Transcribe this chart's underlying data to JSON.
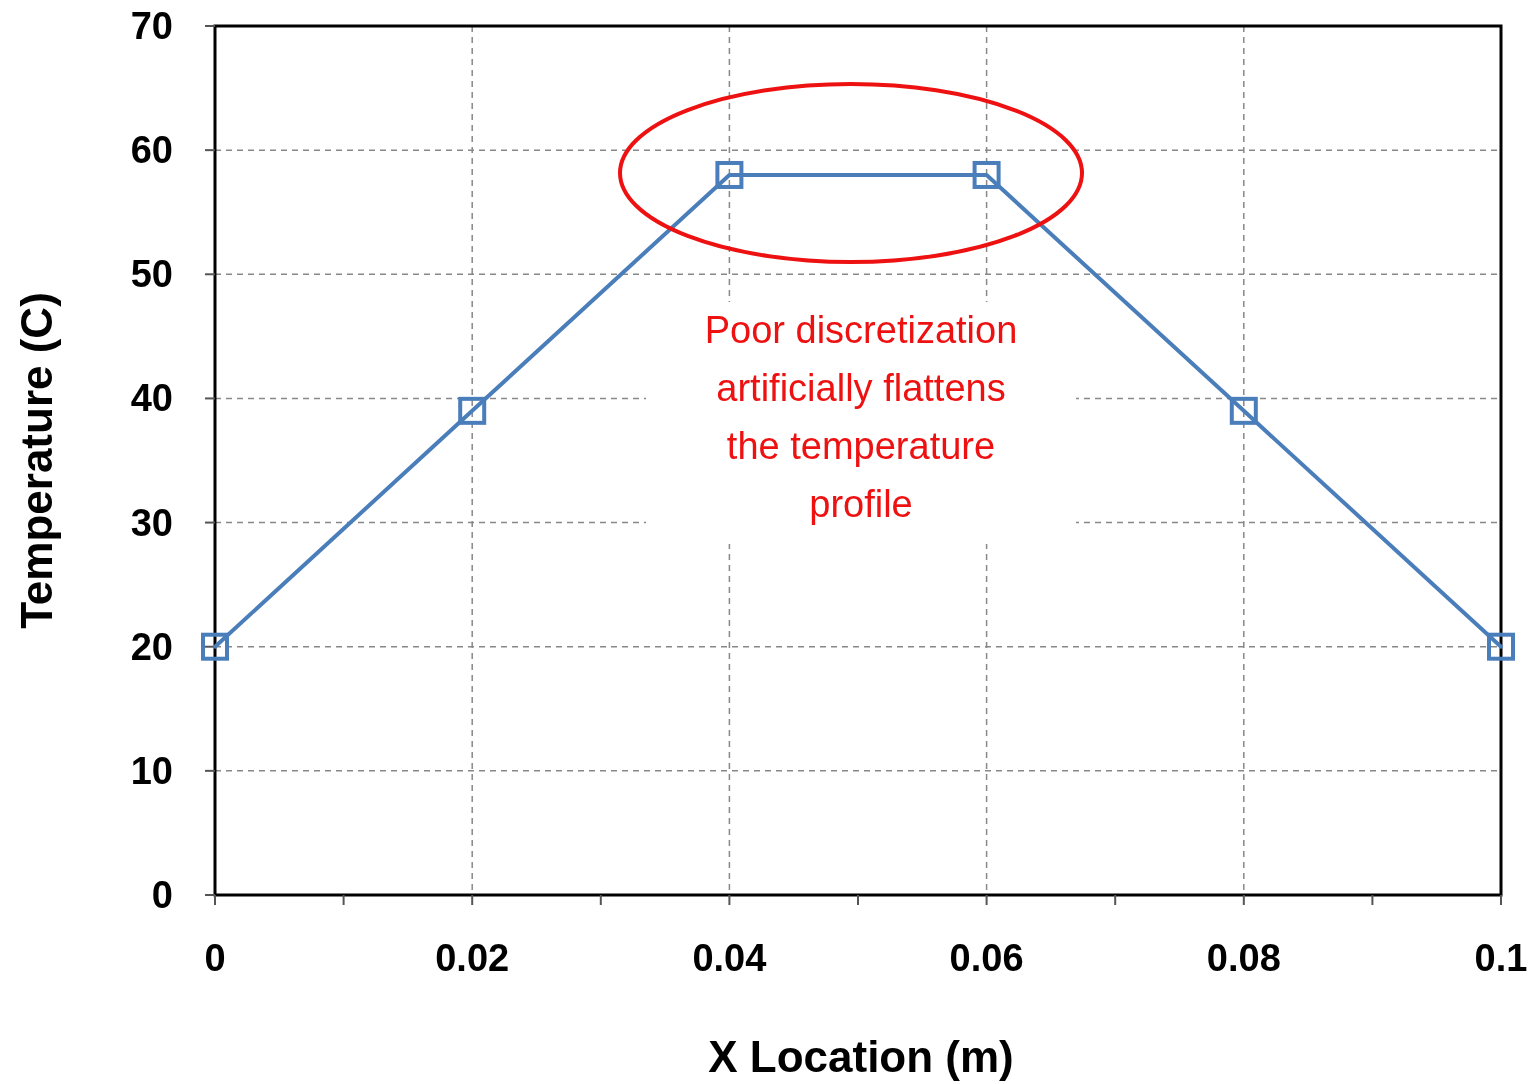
{
  "chart_data": {
    "type": "line",
    "xlabel": "X Location (m)",
    "ylabel": "Temperature (C)",
    "x": [
      0,
      0.02,
      0.04,
      0.06,
      0.08,
      0.1
    ],
    "series": [
      {
        "color": "#4a7ebb",
        "values": [
          20,
          39,
          58,
          58,
          39,
          20
        ]
      }
    ],
    "xlim": [
      0,
      0.1
    ],
    "ylim": [
      0,
      70
    ],
    "xticks": [
      0,
      {
        "value": 0.01,
        "label": null
      },
      {
        "value": 0.02,
        "label": "0.02"
      },
      {
        "value": 0.03,
        "label": null
      },
      {
        "value": 0.04,
        "label": "0.04"
      },
      {
        "value": 0.05,
        "label": null
      },
      {
        "value": 0.06,
        "label": "0.06"
      },
      {
        "value": 0.07,
        "label": null
      },
      {
        "value": 0.08,
        "label": "0.08"
      },
      {
        "value": 0.09,
        "label": null
      },
      {
        "value": 0.1,
        "label": "0.1"
      }
    ],
    "yticks": [
      0,
      10,
      20,
      30,
      40,
      50,
      60,
      70
    ],
    "grid": true,
    "marker": "square",
    "line_style": "solid",
    "annotations": [
      "Poor discretization artificially flattens the temperature profile"
    ]
  }
}
